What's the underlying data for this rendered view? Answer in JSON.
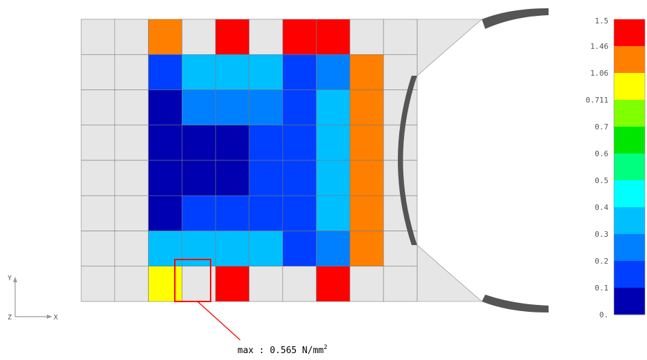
{
  "contour": {
    "grid_cols": 10,
    "grid_rows": 8,
    "colored_cols": [
      3,
      10
    ],
    "cells": [
      [
        9,
        11,
        10,
        11,
        10,
        10,
        11
      ],
      [
        1,
        3,
        3,
        3,
        1,
        2,
        9
      ],
      [
        0,
        2,
        2,
        2,
        1,
        3,
        9
      ],
      [
        0,
        0,
        0,
        1,
        1,
        3,
        9
      ],
      [
        0,
        0,
        0,
        1,
        1,
        3,
        9
      ],
      [
        0,
        1,
        1,
        1,
        1,
        3,
        9
      ],
      [
        3,
        3,
        3,
        3,
        1,
        2,
        9
      ],
      [
        8,
        11,
        10,
        11,
        11,
        10,
        11
      ]
    ],
    "colors": {
      "grey": "#e6e6e6",
      "dark": "#555555"
    }
  },
  "legend": {
    "labels": [
      "1.5",
      "1.46",
      "1.06",
      "0.711",
      "0.7",
      "0.6",
      "0.5",
      "0.4",
      "0.3",
      "0.2",
      "0.1",
      "0."
    ],
    "colors": [
      "#ff0000",
      "#ff7f00",
      "#ffff00",
      "#80ff00",
      "#00e600",
      "#00ff7f",
      "#00ffff",
      "#00bfff",
      "#007fff",
      "#003fff",
      "#0000b0"
    ]
  },
  "axis": {
    "y_label": "Y",
    "x_label": "X",
    "z_label": "Z"
  },
  "annotation": {
    "text": "max : 0.565 N/mm",
    "superscript": "2",
    "value": 0.565
  },
  "highlight": {
    "color": "#ff0000"
  }
}
